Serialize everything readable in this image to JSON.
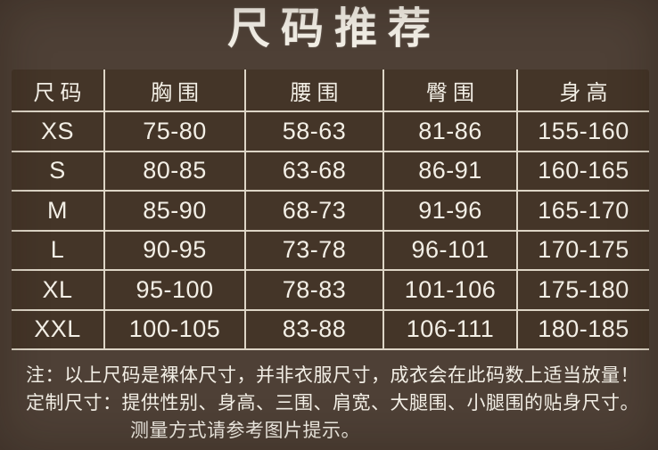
{
  "colors": {
    "background": "#4e4036",
    "panel": "#443528",
    "grid_line": "#ddd5c6",
    "text": "#f3efe6"
  },
  "chart_data": {
    "type": "table",
    "title": "尺码推荐",
    "columns": [
      "尺码",
      "胸围",
      "腰围",
      "臀围",
      "身高"
    ],
    "rows": [
      [
        "XS",
        "75-80",
        "58-63",
        "81-86",
        "155-160"
      ],
      [
        "S",
        "80-85",
        "63-68",
        "86-91",
        "160-165"
      ],
      [
        "M",
        "85-90",
        "68-73",
        "91-96",
        "165-170"
      ],
      [
        "L",
        "90-95",
        "73-78",
        "96-101",
        "170-175"
      ],
      [
        "XL",
        "95-100",
        "78-83",
        "101-106",
        "175-180"
      ],
      [
        "XXL",
        "100-105",
        "83-88",
        "106-111",
        "180-185"
      ]
    ],
    "notes": [
      "注：以上尺码是裸体尺寸，并非衣服尺寸，成衣会在此码数上适当放量！",
      "定制尺寸：提供性别、身高、三围、肩宽、大腿围、小腿围的贴身尺寸。",
      "测量方式请参考图片提示。"
    ]
  }
}
